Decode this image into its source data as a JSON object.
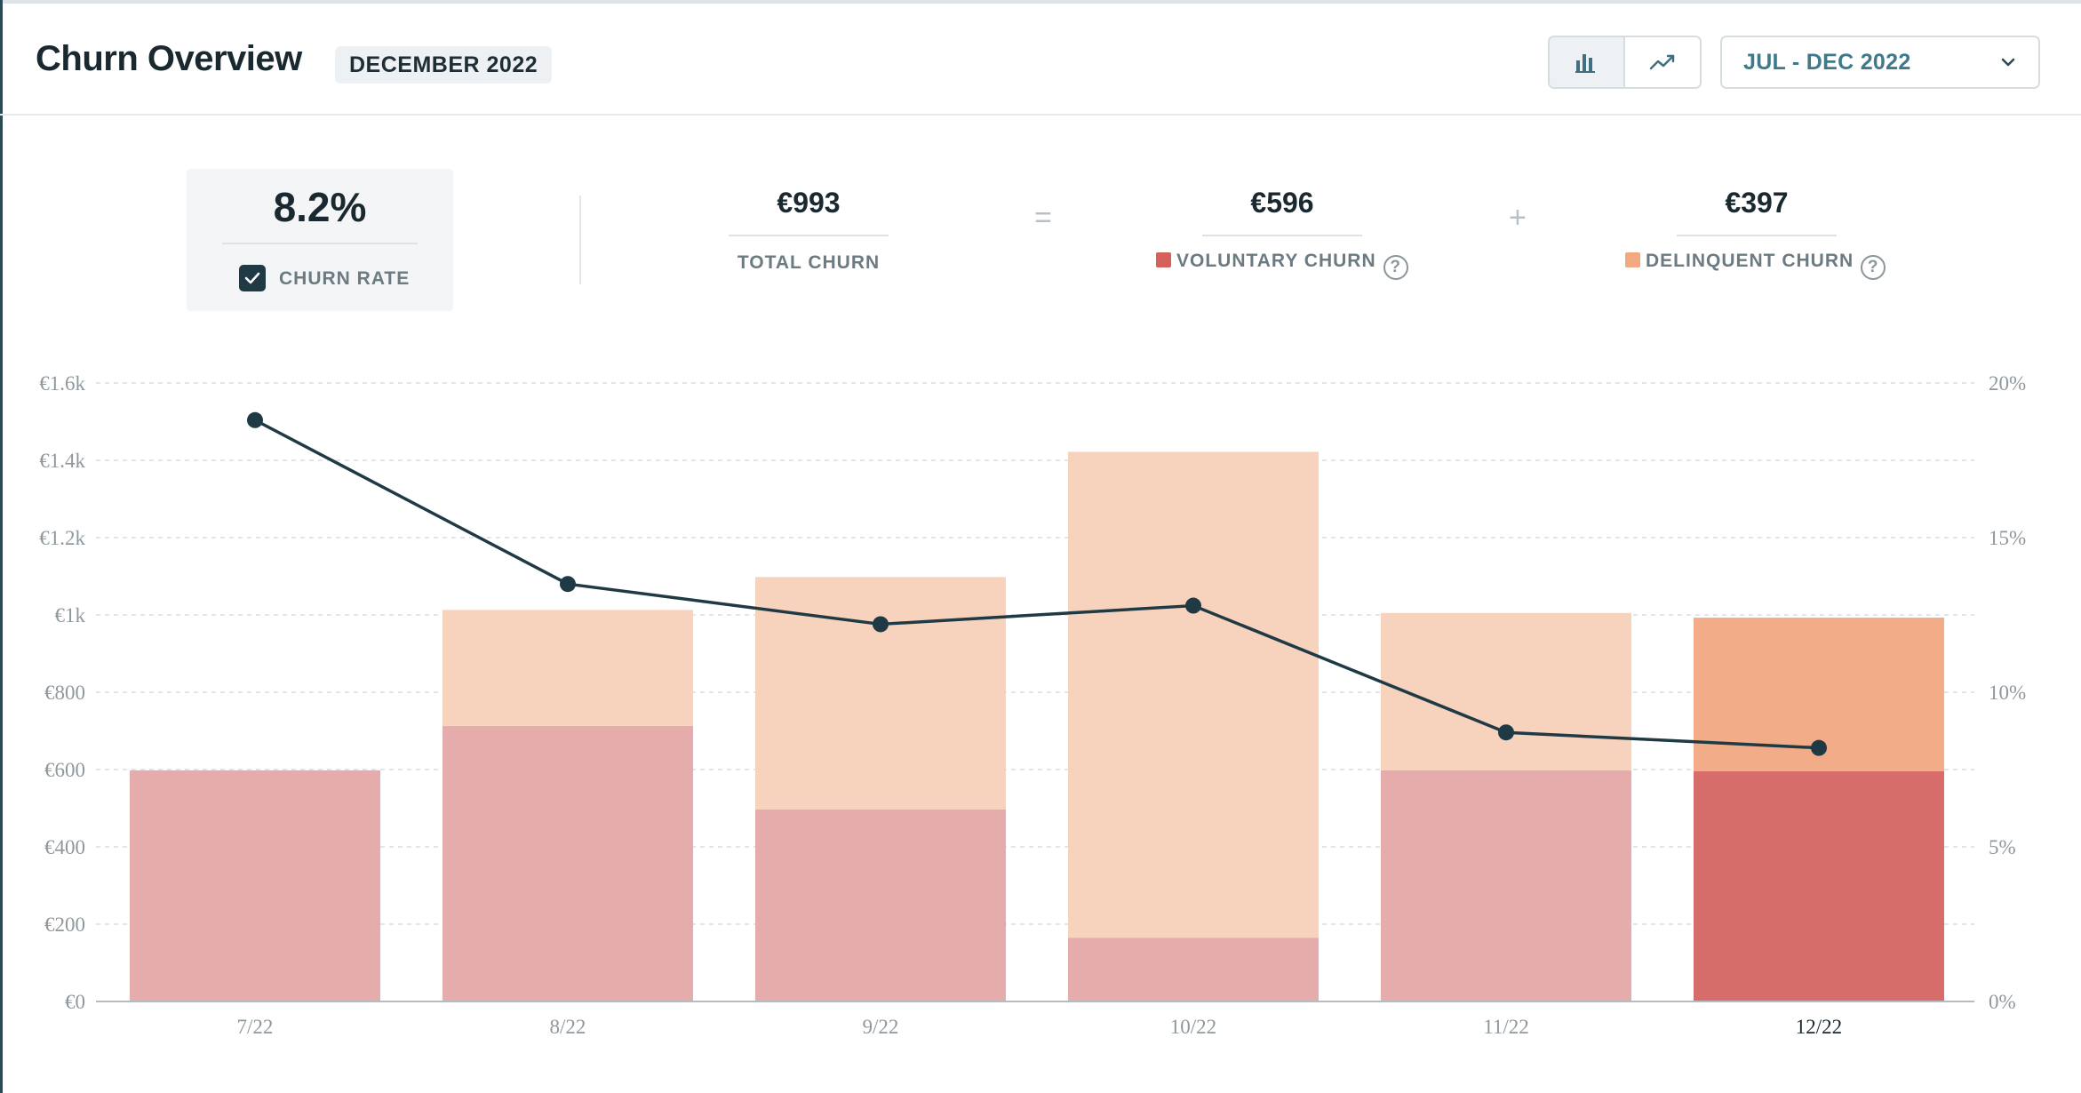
{
  "header": {
    "title": "Churn Overview",
    "month_badge": "DECEMBER 2022",
    "view_toggle": {
      "bar_icon": "bar-chart-icon",
      "line_icon": "line-chart-icon",
      "active": "bar"
    },
    "range_select": {
      "value": "JUL - DEC 2022",
      "icon": "chevron-down-icon"
    }
  },
  "summary": {
    "churn_rate": {
      "value": "8.2%",
      "label": "CHURN RATE",
      "checked": true
    },
    "total_churn": {
      "value": "€993",
      "label": "TOTAL CHURN"
    },
    "equals_sign": "=",
    "voluntary_churn": {
      "value": "€596",
      "label": "VOLUNTARY CHURN",
      "color": "#d6605c"
    },
    "plus_sign": "+",
    "delinquent_churn": {
      "value": "€397",
      "label": "DELINQUENT CHURN",
      "color": "#f2a982"
    },
    "help_glyph": "?"
  },
  "colors": {
    "voluntary_faded": "#e6abab",
    "delinquent_faded": "#f7d3bd",
    "voluntary_active": "#d66d6a",
    "delinquent_active": "#f2ad88",
    "line": "#1f3a45"
  },
  "chart_data": {
    "type": "bar",
    "stacked": true,
    "categories": [
      "7/22",
      "8/22",
      "9/22",
      "10/22",
      "11/22",
      "12/22"
    ],
    "highlighted_category": "12/22",
    "series": [
      {
        "name": "VOLUNTARY CHURN",
        "axis": "left",
        "values": [
          598,
          713,
          497,
          165,
          598,
          596
        ]
      },
      {
        "name": "DELINQUENT CHURN",
        "axis": "left",
        "values": [
          0,
          300,
          601,
          1257,
          407,
          397
        ]
      },
      {
        "name": "CHURN RATE",
        "type": "line",
        "axis": "right",
        "values": [
          18.8,
          13.5,
          12.2,
          12.8,
          8.7,
          8.2
        ]
      }
    ],
    "y_left": {
      "min": 0,
      "max": 1600,
      "ticks": [
        "€0",
        "€200",
        "€400",
        "€600",
        "€800",
        "€1k",
        "€1.2k",
        "€1.4k",
        "€1.6k"
      ],
      "tick_values": [
        0,
        200,
        400,
        600,
        800,
        1000,
        1200,
        1400,
        1600
      ]
    },
    "y_right": {
      "min": 0,
      "max": 20,
      "ticks": [
        "0%",
        "5%",
        "10%",
        "15%",
        "20%"
      ],
      "tick_values": [
        0,
        5,
        10,
        15,
        20
      ]
    },
    "grid": true,
    "legend": "none"
  }
}
